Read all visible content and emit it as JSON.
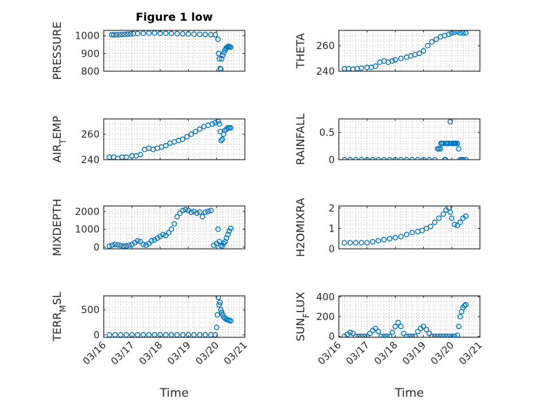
{
  "figure_title": "Figure 1 low",
  "shared_x": {
    "label": "Time",
    "ticks": [
      0,
      1,
      2,
      3,
      4,
      5
    ],
    "tick_labels": [
      "03/16",
      "03/17",
      "03/18",
      "03/19",
      "03/20",
      "03/21"
    ],
    "xlim": [
      0,
      5
    ]
  },
  "style": {
    "marker_color": "#0072BD",
    "axis_color": "#262626",
    "grid_color": "#b8b8b8"
  },
  "chart_data": [
    {
      "type": "scatter",
      "ylabel_parts": [
        "PRESSURE"
      ],
      "ylim": [
        800,
        1030
      ],
      "yticks": [
        800,
        900,
        1000
      ],
      "ytick_labels": [
        "800",
        "900",
        "1000"
      ],
      "grid": true,
      "x": [
        0.28,
        0.35,
        0.45,
        0.55,
        0.65,
        0.75,
        0.85,
        0.95,
        1.05,
        1.2,
        1.4,
        1.6,
        1.8,
        2.0,
        2.2,
        2.4,
        2.6,
        2.8,
        3.0,
        3.2,
        3.4,
        3.6,
        3.8,
        3.95,
        4.05,
        4.07,
        4.1,
        4.13,
        4.15,
        4.18,
        4.22,
        4.26,
        4.3,
        4.34,
        4.38,
        4.42,
        4.46,
        4.5
      ],
      "y": [
        1005,
        1005,
        1006,
        1006,
        1007,
        1008,
        1009,
        1010,
        1012,
        1013,
        1014,
        1015,
        1015,
        1014,
        1014,
        1013,
        1012,
        1011,
        1010,
        1009,
        1008,
        1007,
        1006,
        1005,
        980,
        900,
        870,
        815,
        812,
        870,
        890,
        905,
        920,
        930,
        935,
        940,
        938,
        935
      ]
    },
    {
      "type": "scatter",
      "ylabel_parts": [
        "THETA"
      ],
      "ylim": [
        240,
        272
      ],
      "yticks": [
        240,
        260
      ],
      "ytick_labels": [
        "240",
        "260"
      ],
      "grid": true,
      "x": [
        0.2,
        0.35,
        0.5,
        0.65,
        0.8,
        1.0,
        1.15,
        1.3,
        1.45,
        1.6,
        1.75,
        1.9,
        2.0,
        2.2,
        2.4,
        2.55,
        2.7,
        2.85,
        3.0,
        3.15,
        3.3,
        3.45,
        3.6,
        3.75,
        3.9,
        4.0,
        4.1,
        4.2,
        4.3,
        4.4,
        4.5
      ],
      "y": [
        242,
        242,
        241.5,
        242,
        242.5,
        243,
        243,
        244,
        247,
        248,
        247,
        248,
        249,
        250,
        251,
        252,
        253,
        254,
        256,
        260,
        263,
        265,
        267,
        268,
        269,
        270,
        270.5,
        271,
        270,
        270,
        270
      ]
    },
    {
      "type": "scatter",
      "ylabel_parts": [
        "AIR",
        "T",
        "EMP"
      ],
      "ylim": [
        240,
        272
      ],
      "yticks": [
        240,
        260
      ],
      "ytick_labels": [
        "240",
        "260"
      ],
      "grid": true,
      "x": [
        0.2,
        0.35,
        0.5,
        0.65,
        0.8,
        1.0,
        1.15,
        1.3,
        1.45,
        1.6,
        1.75,
        1.9,
        2.05,
        2.2,
        2.35,
        2.5,
        2.65,
        2.8,
        2.95,
        3.1,
        3.25,
        3.4,
        3.55,
        3.7,
        3.85,
        3.95,
        4.05,
        4.1,
        4.13,
        4.16,
        4.2,
        4.25,
        4.3,
        4.35,
        4.4,
        4.45,
        4.5
      ],
      "y": [
        242,
        242,
        241,
        242,
        242,
        243,
        243,
        244,
        248,
        249,
        248,
        249,
        250,
        251,
        253,
        254,
        255,
        256,
        258,
        260,
        262,
        264,
        266,
        267,
        268,
        269,
        270,
        268,
        262,
        255,
        256,
        260,
        263,
        264,
        265,
        265,
        265
      ]
    },
    {
      "type": "scatter",
      "ylabel_parts": [
        "RAINFALL"
      ],
      "ylim": [
        0,
        0.75
      ],
      "yticks": [
        0,
        0.5
      ],
      "ytick_labels": [
        "0",
        "0.5"
      ],
      "grid": true,
      "x": [
        0.2,
        0.4,
        0.6,
        0.8,
        1.0,
        1.2,
        1.4,
        1.6,
        1.8,
        2.0,
        2.2,
        2.4,
        2.6,
        2.8,
        3.0,
        3.2,
        3.4,
        3.5,
        3.55,
        3.6,
        3.62,
        3.65,
        3.7,
        3.75,
        3.78,
        3.8,
        3.82,
        3.85,
        3.9,
        3.95,
        4.0,
        4.05,
        4.08,
        4.1,
        4.12,
        4.15,
        4.2,
        4.25,
        4.3,
        4.35,
        4.4,
        4.5
      ],
      "y": [
        0,
        0,
        0,
        0,
        0,
        0,
        0,
        0,
        0,
        0,
        0,
        0,
        0,
        0,
        0,
        0,
        0,
        0.2,
        0.2,
        0.2,
        0.3,
        0.3,
        0.3,
        0,
        0,
        0.3,
        0.3,
        0.3,
        0.3,
        0.7,
        0.3,
        0.3,
        0.3,
        0.3,
        0.3,
        0.3,
        0.3,
        0.2,
        0,
        0,
        0,
        0
      ]
    },
    {
      "type": "scatter",
      "ylabel_parts": [
        "MIXDEPTH"
      ],
      "ylim": [
        -100,
        2300
      ],
      "yticks": [
        0,
        1000,
        2000
      ],
      "ytick_labels": [
        "0",
        "1000",
        "2000"
      ],
      "grid": true,
      "x": [
        0.2,
        0.3,
        0.4,
        0.5,
        0.6,
        0.7,
        0.8,
        0.9,
        1.0,
        1.1,
        1.2,
        1.3,
        1.4,
        1.5,
        1.6,
        1.7,
        1.8,
        1.9,
        2.0,
        2.1,
        2.2,
        2.3,
        2.4,
        2.5,
        2.6,
        2.7,
        2.8,
        2.9,
        3.0,
        3.1,
        3.2,
        3.3,
        3.4,
        3.5,
        3.6,
        3.7,
        3.8,
        3.9,
        4.0,
        4.05,
        4.1,
        4.15,
        4.2,
        4.25,
        4.3,
        4.35,
        4.4,
        4.45,
        4.5
      ],
      "y": [
        50,
        100,
        150,
        120,
        80,
        50,
        60,
        100,
        150,
        250,
        350,
        300,
        150,
        100,
        200,
        350,
        400,
        500,
        600,
        700,
        650,
        800,
        1000,
        1300,
        1700,
        1900,
        2050,
        2100,
        2050,
        1950,
        2000,
        1900,
        1950,
        1700,
        1950,
        2000,
        2050,
        100,
        200,
        1000,
        300,
        100,
        50,
        200,
        300,
        500,
        700,
        900,
        1050
      ]
    },
    {
      "type": "scatter",
      "ylabel_parts": [
        "H2OMIXRA"
      ],
      "ylim": [
        0,
        2.1
      ],
      "yticks": [
        0,
        1,
        2
      ],
      "ytick_labels": [
        "0",
        "1",
        "2"
      ],
      "grid": true,
      "x": [
        0.2,
        0.4,
        0.6,
        0.8,
        1.0,
        1.2,
        1.4,
        1.6,
        1.8,
        2.0,
        2.2,
        2.4,
        2.6,
        2.8,
        2.95,
        3.1,
        3.25,
        3.4,
        3.55,
        3.7,
        3.8,
        3.9,
        3.95,
        4.0,
        4.1,
        4.2,
        4.3,
        4.4,
        4.5
      ],
      "y": [
        0.3,
        0.3,
        0.3,
        0.3,
        0.3,
        0.35,
        0.4,
        0.45,
        0.5,
        0.55,
        0.6,
        0.7,
        0.8,
        0.85,
        0.9,
        1.0,
        1.1,
        1.3,
        1.5,
        1.7,
        1.9,
        2.0,
        1.8,
        1.5,
        1.2,
        1.15,
        1.3,
        1.5,
        1.6
      ]
    },
    {
      "type": "scatter",
      "ylabel_parts": [
        "TERR",
        "M",
        "SL"
      ],
      "ylim": [
        -50,
        780
      ],
      "yticks": [
        0,
        500
      ],
      "ytick_labels": [
        "0",
        "500"
      ],
      "grid": true,
      "x": [
        0.2,
        0.4,
        0.6,
        0.8,
        1.0,
        1.2,
        1.4,
        1.6,
        1.8,
        2.0,
        2.2,
        2.4,
        2.6,
        2.8,
        3.0,
        3.2,
        3.4,
        3.6,
        3.8,
        3.95,
        4.0,
        4.03,
        4.06,
        4.09,
        4.12,
        4.15,
        4.18,
        4.22,
        4.26,
        4.3,
        4.35,
        4.4,
        4.45,
        4.5
      ],
      "y": [
        0,
        0,
        0,
        0,
        0,
        0,
        0,
        0,
        0,
        0,
        0,
        0,
        0,
        0,
        0,
        0,
        0,
        0,
        0,
        0,
        150,
        400,
        750,
        600,
        650,
        500,
        450,
        400,
        350,
        330,
        310,
        300,
        290,
        280
      ]
    },
    {
      "type": "scatter",
      "ylabel_parts": [
        "SUN",
        "F",
        "LUX"
      ],
      "ylim": [
        -10,
        410
      ],
      "yticks": [
        0,
        200,
        400
      ],
      "ytick_labels": [
        "0",
        "200",
        "400"
      ],
      "grid": true,
      "x": [
        0.2,
        0.3,
        0.4,
        0.5,
        0.6,
        0.7,
        0.8,
        0.9,
        1.0,
        1.1,
        1.2,
        1.3,
        1.4,
        1.5,
        1.6,
        1.7,
        1.8,
        1.9,
        2.0,
        2.1,
        2.2,
        2.3,
        2.4,
        2.5,
        2.6,
        2.7,
        2.8,
        2.9,
        3.0,
        3.1,
        3.2,
        3.3,
        3.4,
        3.5,
        3.6,
        3.7,
        3.8,
        3.9,
        4.0,
        4.1,
        4.2,
        4.25,
        4.3,
        4.35,
        4.4,
        4.45,
        4.5
      ],
      "y": [
        0,
        20,
        40,
        30,
        0,
        0,
        0,
        0,
        0,
        30,
        60,
        80,
        50,
        0,
        0,
        0,
        0,
        40,
        100,
        140,
        100,
        30,
        0,
        0,
        0,
        0,
        50,
        80,
        100,
        70,
        30,
        0,
        0,
        0,
        0,
        0,
        0,
        0,
        0,
        0,
        10,
        100,
        200,
        250,
        290,
        310,
        320
      ]
    }
  ]
}
